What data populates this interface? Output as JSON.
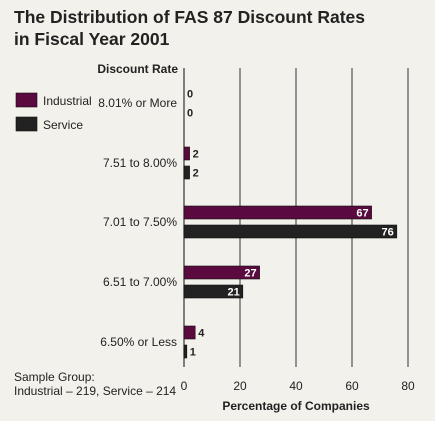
{
  "title_lines": [
    "The Distribution of FAS 87 Discount Rates",
    "in Fiscal Year 2001"
  ],
  "note_lines": [
    "Sample Group:",
    "Industrial – 219, Service – 214"
  ],
  "chart_data": {
    "type": "bar",
    "orientation": "horizontal",
    "category_header": "Discount Rate",
    "categories": [
      "8.01% or More",
      "7.51 to 8.00%",
      "7.01 to 7.50%",
      "6.51 to 7.00%",
      "6.50% or Less"
    ],
    "series": [
      {
        "name": "Industrial",
        "color": "#5a0a3e",
        "values": [
          0,
          2,
          67,
          27,
          4
        ]
      },
      {
        "name": "Service",
        "color": "#222222",
        "values": [
          0,
          2,
          76,
          21,
          1
        ]
      }
    ],
    "xlabel": "Percentage of Companies",
    "xlim": [
      0,
      80
    ],
    "xticks": [
      0,
      20,
      40,
      60,
      80
    ],
    "grid": true,
    "legend_position": "left"
  }
}
